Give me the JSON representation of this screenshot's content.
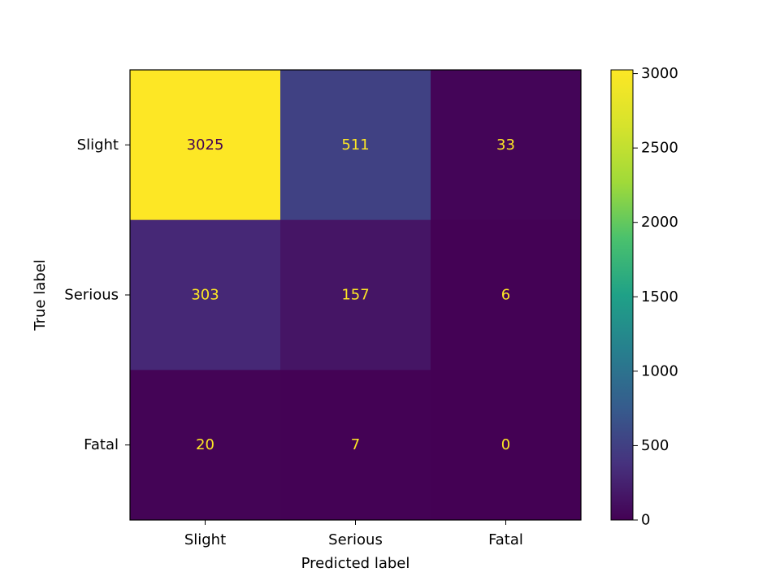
{
  "chart_data": {
    "type": "heatmap",
    "title": "",
    "xlabel": "Predicted label",
    "ylabel": "True label",
    "x_categories": [
      "Slight",
      "Serious",
      "Fatal"
    ],
    "y_categories": [
      "Slight",
      "Serious",
      "Fatal"
    ],
    "values": [
      [
        3025,
        511,
        33
      ],
      [
        303,
        157,
        6
      ],
      [
        20,
        7,
        0
      ]
    ],
    "colormap": "viridis",
    "colorbar": {
      "range": [
        0,
        3025
      ],
      "ticks": [
        0,
        500,
        1000,
        1500,
        2000,
        2500,
        3000
      ]
    },
    "grid": false,
    "colors": {
      "text_on_dark": "#fde725",
      "text_on_light": "#440154"
    }
  }
}
